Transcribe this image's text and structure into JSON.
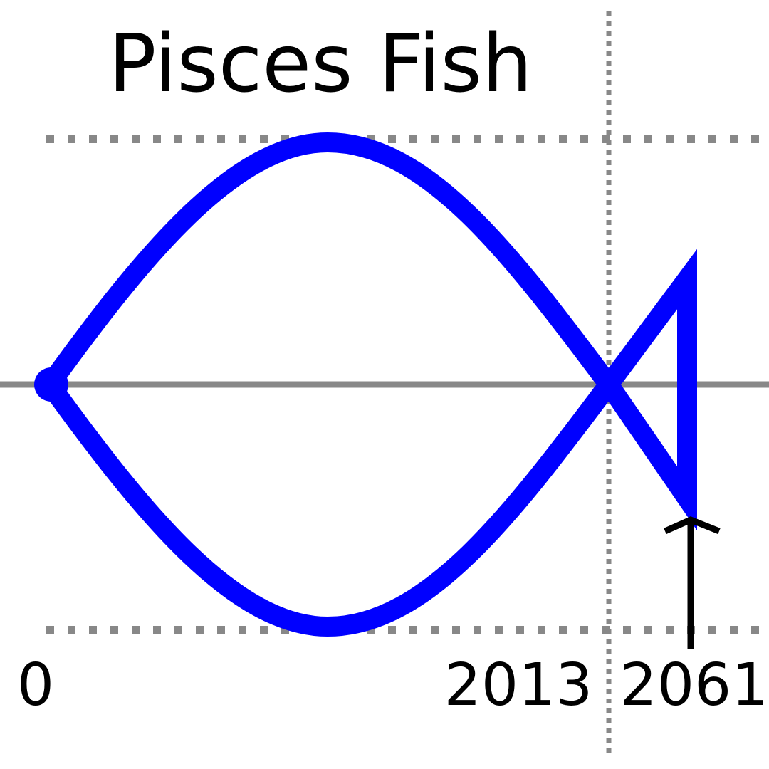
{
  "title": "Pisces Fish",
  "labels": [
    "0",
    "2013",
    "2061"
  ]
}
